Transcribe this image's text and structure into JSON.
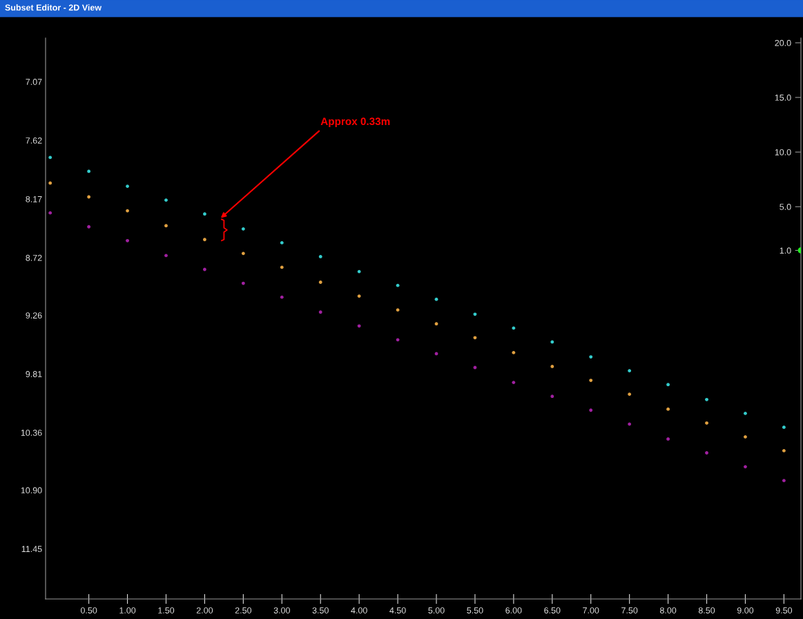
{
  "chart_data": {
    "type": "scatter",
    "title": "Subset Editor - 2D View",
    "xlim": [
      -0.06,
      9.72
    ],
    "ylim": [
      11.92,
      6.66
    ],
    "xticks": [
      {
        "value": 0.5,
        "label": "0.50"
      },
      {
        "value": 1,
        "label": "1.00"
      },
      {
        "value": 1.5,
        "label": "1.50"
      },
      {
        "value": 2,
        "label": "2.00"
      },
      {
        "value": 2.5,
        "label": "2.50"
      },
      {
        "value": 3,
        "label": "3.00"
      },
      {
        "value": 3.5,
        "label": "3.50"
      },
      {
        "value": 4,
        "label": "4.00"
      },
      {
        "value": 4.5,
        "label": "4.50"
      },
      {
        "value": 5,
        "label": "5.00"
      },
      {
        "value": 5.5,
        "label": "5.50"
      },
      {
        "value": 6,
        "label": "6.00"
      },
      {
        "value": 6.5,
        "label": "6.50"
      },
      {
        "value": 7,
        "label": "7.00"
      },
      {
        "value": 7.5,
        "label": "7.50"
      },
      {
        "value": 8,
        "label": "8.00"
      },
      {
        "value": 8.5,
        "label": "8.50"
      },
      {
        "value": 9,
        "label": "9.00"
      },
      {
        "value": 9.5,
        "label": "9.50"
      }
    ],
    "yticks": [
      7.07,
      7.62,
      8.17,
      8.72,
      9.26,
      9.81,
      10.36,
      {
        "value": 10.9,
        "label": "10.90"
      },
      11.45
    ],
    "y2lim": [
      -30.9,
      20.44
    ],
    "y2ticks": [
      {
        "value": 1,
        "label": "1.0"
      },
      {
        "value": 5,
        "label": "5.0"
      },
      {
        "value": 10,
        "label": "10.0"
      },
      {
        "value": 15,
        "label": "15.0"
      },
      {
        "value": 20,
        "label": "20.0"
      }
    ],
    "x": [
      0,
      0.5,
      1,
      1.5,
      2,
      2.5,
      3,
      3.5,
      4,
      4.5,
      5,
      5.5,
      6,
      6.5,
      7,
      7.5,
      8,
      8.5,
      9,
      9.5
    ],
    "marker": "circle",
    "grid": false,
    "series": [
      {
        "color": "#33cccc",
        "values": [
          7.78,
          7.91,
          8.05,
          8.18,
          8.31,
          8.45,
          8.58,
          8.71,
          8.85,
          8.98,
          9.11,
          9.25,
          9.38,
          9.51,
          9.65,
          9.78,
          9.91,
          10.05,
          10.18,
          10.31
        ]
      },
      {
        "color": "#e0a040",
        "values": [
          8.02,
          8.15,
          8.28,
          8.42,
          8.55,
          8.68,
          8.81,
          8.95,
          9.08,
          9.21,
          9.34,
          9.47,
          9.61,
          9.74,
          9.87,
          10.0,
          10.14,
          10.27,
          10.4,
          10.53
        ]
      },
      {
        "color": "#a020a0",
        "values": [
          8.3,
          8.43,
          8.56,
          8.7,
          8.83,
          8.96,
          9.09,
          9.23,
          9.36,
          9.49,
          9.62,
          9.75,
          9.89,
          10.02,
          10.15,
          10.28,
          10.42,
          10.55,
          10.68,
          10.81
        ]
      },
      {
        "color": "#22ee22",
        "axis": "y2",
        "x": [
          9.72
        ],
        "values": [
          1.0
        ]
      }
    ],
    "annotations": [
      "Approx 0.33m"
    ]
  }
}
